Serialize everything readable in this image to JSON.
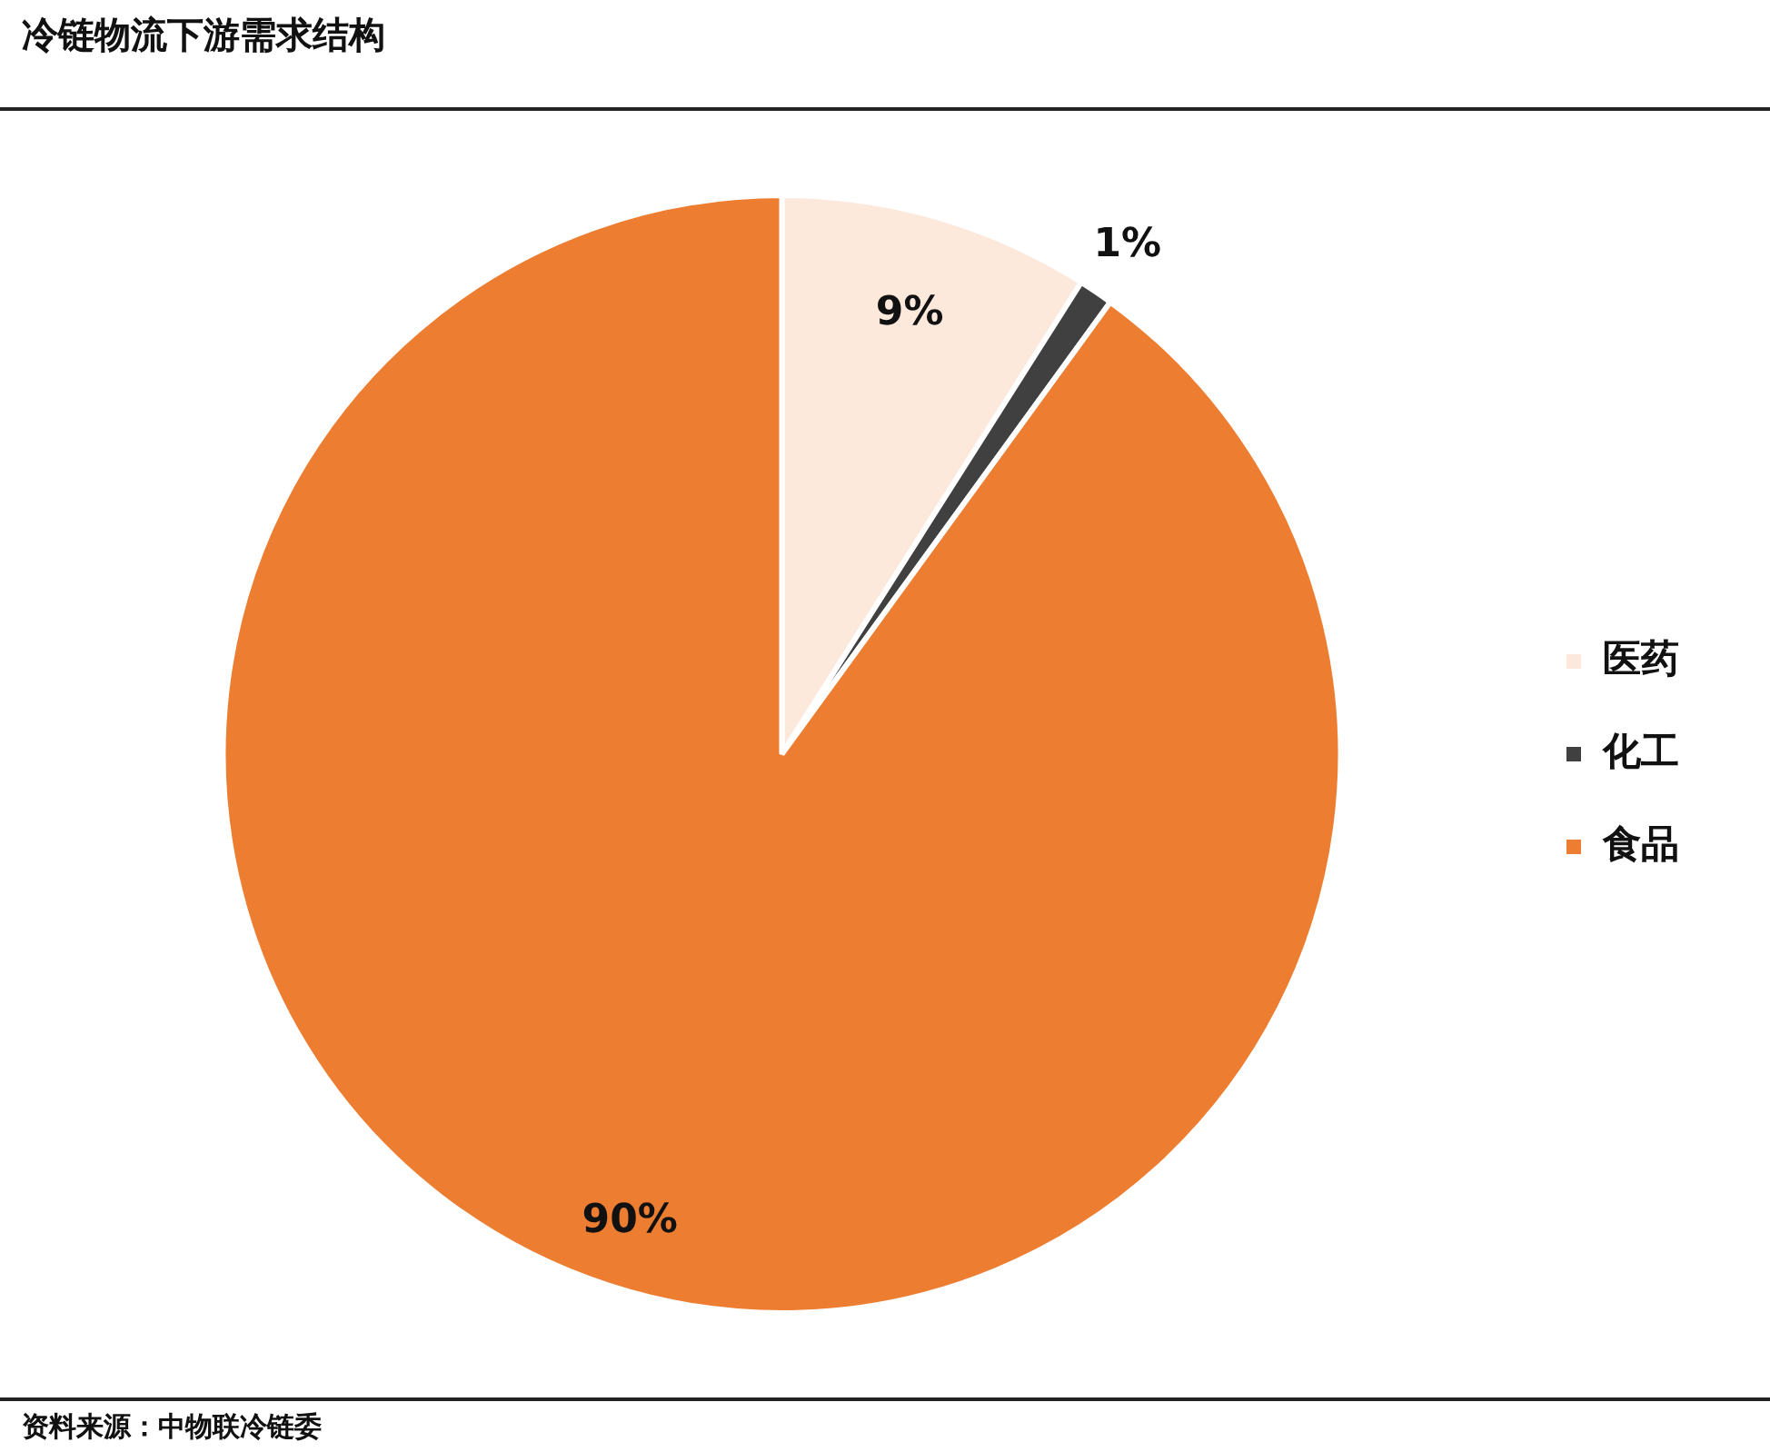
{
  "chart_data": {
    "type": "pie",
    "title": "冷链物流下游需求结构",
    "categories": [
      "医药",
      "化工",
      "食品"
    ],
    "values": [
      9,
      1,
      90
    ],
    "value_labels": [
      "9%",
      "1%",
      "90%"
    ],
    "colors": [
      "#fde8dc",
      "#404040",
      "#ed7d31"
    ],
    "legend": "right",
    "annotations": [
      "资料来源：中物联冷链委"
    ]
  }
}
